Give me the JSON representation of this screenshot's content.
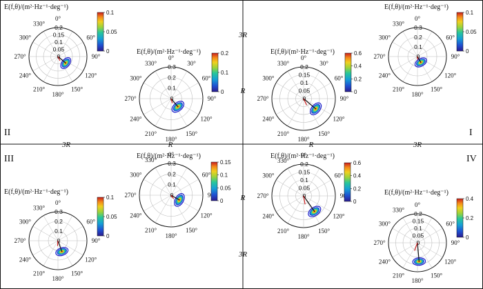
{
  "figure": {
    "quadrants": [
      "I",
      "II",
      "III",
      "IV"
    ],
    "scale_marks": [
      "3R",
      "R"
    ],
    "colors": {
      "axis": "#111111",
      "grid": "#bdbdbd",
      "direction": "#cc1111",
      "contour_outer": "#1a1ac9"
    },
    "colormap": [
      "#2b1c8f",
      "#1f4fd1",
      "#16a0d6",
      "#28c79a",
      "#9cd33b",
      "#f0d020",
      "#f58a1a",
      "#c81e1e"
    ]
  },
  "chart_data": [
    {
      "type": "polar-spectrum",
      "id": "II-outer",
      "title": "E(f,θ)/(m²·Hz⁻¹·deg⁻¹)",
      "angular_ticks": [
        "0°",
        "60°",
        "90°",
        "120°",
        "150°",
        "180°",
        "210°",
        "240°",
        "270°",
        "300°",
        "330°"
      ],
      "radial_ticks": [
        "0.2",
        "0.15",
        "0.1",
        "0.05",
        "0"
      ],
      "colorbar": {
        "min": 0,
        "max": 0.1,
        "ticks": [
          "0.1",
          "0.05",
          "0"
        ]
      },
      "peak_direction_deg": 130,
      "peak_frequency": 0.07
    },
    {
      "type": "polar-spectrum",
      "id": "II-inner",
      "title": "E(f,θ)/(m²·Hz⁻¹·deg⁻¹)",
      "angular_ticks": [
        "0°",
        "30°",
        "60°",
        "90°",
        "120°",
        "150°",
        "180°",
        "210°",
        "240°",
        "270°",
        "300°",
        "330°"
      ],
      "radial_ticks": [
        "0.3",
        "0.2",
        "0.1",
        "0"
      ],
      "colorbar": {
        "min": 0,
        "max": 0.2,
        "ticks": [
          "0.2",
          "0.1",
          "0"
        ]
      },
      "peak_direction_deg": 140,
      "peak_frequency": 0.1
    },
    {
      "type": "polar-spectrum",
      "id": "I-inner",
      "title": "E(f,θ)/(m²·Hz⁻¹·deg⁻¹)",
      "angular_ticks": [
        "0°",
        "30°",
        "60°",
        "90°",
        "120°",
        "150°",
        "180°",
        "210°",
        "240°",
        "270°",
        "300°",
        "330°"
      ],
      "radial_ticks": [
        "0.2",
        "0.15",
        "0.1",
        "0.05",
        "0"
      ],
      "colorbar": {
        "min": 0,
        "max": 0.6,
        "ticks": [
          "0.6",
          "0.4",
          "0.2",
          "0"
        ]
      },
      "peak_direction_deg": 130,
      "peak_frequency": 0.1
    },
    {
      "type": "polar-spectrum",
      "id": "I-outer",
      "title": "E(f,θ)/(m²·Hz⁻¹·deg⁻¹)",
      "angular_ticks": [
        "0°",
        "60°",
        "90°",
        "120°",
        "150°",
        "180°",
        "210°",
        "240°",
        "270°",
        "300°",
        "330°"
      ],
      "radial_ticks": [
        "0.3",
        "0.2",
        "0.1",
        "0"
      ],
      "colorbar": {
        "min": 0,
        "max": 0.1,
        "ticks": [
          "0.1",
          "0.05",
          "0"
        ]
      },
      "peak_direction_deg": 150,
      "peak_frequency": 0.07
    },
    {
      "type": "polar-spectrum",
      "id": "III-inner",
      "title": "E(f,θ)/(m²·Hz⁻¹·deg⁻¹)",
      "angular_ticks": [
        "0°",
        "60°",
        "90°",
        "120°",
        "150°",
        "180°",
        "210°",
        "240°",
        "270°",
        "300°",
        "330°"
      ],
      "radial_ticks": [
        "0.3",
        "0.2",
        "0.1",
        "0"
      ],
      "colorbar": {
        "min": 0,
        "max": 0.15,
        "ticks": [
          "0.15",
          "0.1",
          "0.05",
          "0"
        ]
      },
      "peak_direction_deg": 120,
      "peak_frequency": 0.09
    },
    {
      "type": "polar-spectrum",
      "id": "III-outer",
      "title": "E(f,θ)/(m²·Hz⁻¹·deg⁻¹)",
      "angular_ticks": [
        "0°",
        "60°",
        "90°",
        "120°",
        "150°",
        "180°",
        "210°",
        "240°",
        "270°",
        "300°",
        "330°"
      ],
      "radial_ticks": [
        "0.3",
        "0.2",
        "0.1",
        "0"
      ],
      "colorbar": {
        "min": 0,
        "max": 0.1,
        "ticks": [
          "0.1",
          "0.05",
          "0"
        ]
      },
      "peak_direction_deg": 160,
      "peak_frequency": 0.12
    },
    {
      "type": "polar-spectrum",
      "id": "IV-inner",
      "title": "E(f,θ)/(m²·Hz⁻¹·deg⁻¹)",
      "angular_ticks": [
        "0°",
        "60°",
        "90°",
        "120°",
        "150°",
        "180°",
        "210°",
        "240°",
        "270°",
        "300°",
        "330°"
      ],
      "radial_ticks": [
        "0.2",
        "0.15",
        "0.1",
        "0.05",
        "0"
      ],
      "colorbar": {
        "min": 0,
        "max": 0.6,
        "ticks": [
          "0.6",
          "0.4",
          "0.2",
          "0"
        ]
      },
      "peak_direction_deg": 145,
      "peak_frequency": 0.12
    },
    {
      "type": "polar-spectrum",
      "id": "IV-outer",
      "title": "E(f,θ)/(m²·Hz⁻¹·deg⁻¹)",
      "angular_ticks": [
        "0°",
        "60°",
        "90°",
        "120°",
        "150°",
        "180°",
        "210°",
        "240°",
        "270°",
        "300°",
        "330°"
      ],
      "radial_ticks": [
        "0.2",
        "0.15",
        "0.1",
        "0.05",
        "0"
      ],
      "colorbar": {
        "min": 0,
        "max": 0.4,
        "ticks": [
          "0.4",
          "0.2",
          "0"
        ]
      },
      "peak_direction_deg": 175,
      "peak_frequency": 0.13
    }
  ]
}
